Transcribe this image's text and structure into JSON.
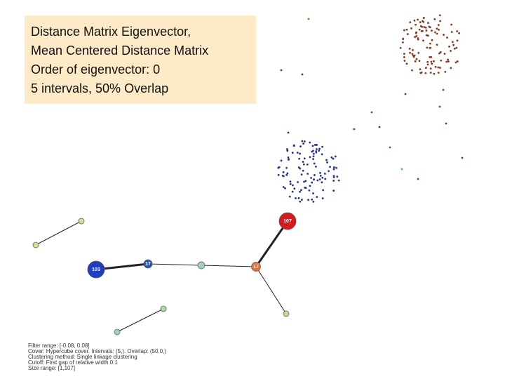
{
  "title_box": {
    "lines": [
      "Distance Matrix Eigenvector,",
      "Mean Centered Distance Matrix",
      "Order of eigenvector:  0",
      "5 intervals, 50% Overlap"
    ]
  },
  "nodes": [
    {
      "label": "107"
    },
    {
      "label": "103"
    },
    {
      "label": "17"
    },
    {
      "label": "17"
    }
  ],
  "footer": {
    "lines": [
      "Filter range: [-0.08, 0.08]",
      "Cover: Hypercube cover. Intervals: (5,). Overlap: (50.0,)",
      "Clustering method: Single linkage clustering",
      "Cutoff: First gap of relative width 0.1",
      "Size range: [1,107]"
    ]
  }
}
